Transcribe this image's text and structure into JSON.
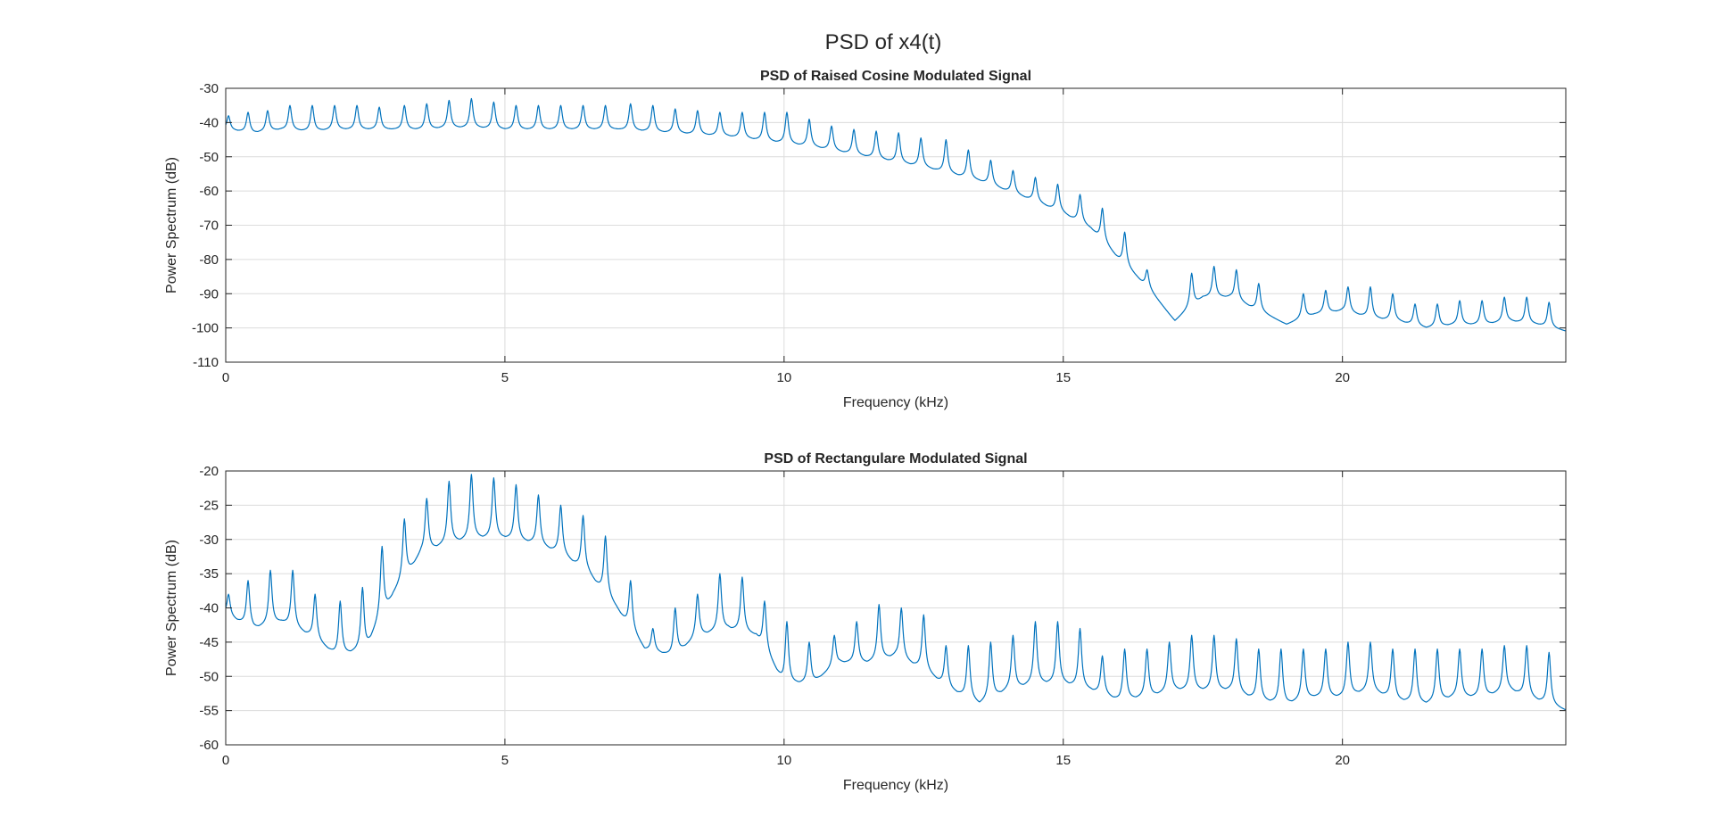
{
  "figure": {
    "title": "PSD of x4(t)"
  },
  "chart_data": [
    {
      "type": "line",
      "title": "PSD of Raised Cosine Modulated Signal",
      "xlabel": "Frequency (kHz)",
      "ylabel": "Power Spectrum (dB)",
      "xlim": [
        0,
        24
      ],
      "ylim": [
        -110,
        -30
      ],
      "xticks": [
        0,
        5,
        10,
        15,
        20
      ],
      "yticks": [
        -110,
        -100,
        -90,
        -80,
        -70,
        -60,
        -50,
        -40,
        -30
      ],
      "grid": true,
      "series": [
        {
          "color": "#0072BD",
          "x": [
            0,
            0.5,
            1,
            1.5,
            2,
            2.5,
            3,
            3.5,
            4,
            4.5,
            5,
            5.5,
            6,
            6.5,
            7,
            7.5,
            8,
            8.5,
            9,
            9.5,
            10,
            10.5,
            11,
            11.5,
            12,
            12.5,
            13,
            13.5,
            14,
            14.5,
            15,
            15.5,
            16,
            16.5,
            17,
            17.5,
            18,
            18.5,
            19,
            19.5,
            20,
            20.5,
            21,
            21.5,
            22,
            22.5,
            23,
            23.5,
            24
          ],
          "floor": [
            -42,
            -43,
            -42,
            -42.5,
            -42,
            -42,
            -42,
            -42,
            -41.5,
            -41.5,
            -42,
            -42,
            -42,
            -42,
            -42,
            -42.5,
            -43,
            -43.5,
            -44,
            -45,
            -46,
            -47,
            -48.5,
            -50,
            -51.5,
            -53,
            -55,
            -57,
            -60,
            -63,
            -66.5,
            -71,
            -80,
            -88,
            -98,
            -91,
            -91,
            -95,
            -99,
            -96,
            -95,
            -97,
            -98,
            -100,
            -99,
            -99,
            -98,
            -99,
            -101
          ],
          "peaks": {
            "x": [
              0.05,
              0.4,
              0.75,
              1.15,
              1.55,
              1.95,
              2.35,
              2.75,
              3.2,
              3.6,
              4.0,
              4.4,
              4.8,
              5.2,
              5.6,
              6.0,
              6.4,
              6.8,
              7.25,
              7.65,
              8.05,
              8.45,
              8.85,
              9.25,
              9.65,
              10.05,
              10.45,
              10.85,
              11.25,
              11.65,
              12.05,
              12.45,
              12.9,
              13.3,
              13.7,
              14.1,
              14.5,
              14.9,
              15.3,
              15.7,
              16.1,
              16.5,
              17.3,
              17.7,
              18.1,
              18.5,
              19.3,
              19.7,
              20.1,
              20.5,
              20.9,
              21.3,
              21.7,
              22.1,
              22.5,
              22.9,
              23.3,
              23.7
            ],
            "y": [
              -38,
              -37,
              -36.5,
              -35,
              -35,
              -35,
              -35,
              -35.5,
              -35,
              -34.5,
              -33.5,
              -33,
              -34,
              -35,
              -35,
              -35,
              -35,
              -35,
              -34.5,
              -35,
              -36,
              -36.5,
              -37,
              -37,
              -37,
              -37,
              -39,
              -41,
              -42,
              -42.5,
              -43,
              -44.5,
              -45,
              -48,
              -51,
              -54,
              -56,
              -58,
              -61,
              -65,
              -72,
              -83,
              -84,
              -82,
              -83,
              -87,
              -90,
              -89,
              -88,
              -88,
              -90,
              -93,
              -93,
              -92,
              -92,
              -91,
              -91,
              -92.5
            ]
          }
        }
      ]
    },
    {
      "type": "line",
      "title": "PSD of Rectangulare Modulated Signal",
      "xlabel": "Frequency (kHz)",
      "ylabel": "Power Spectrum (dB)",
      "xlim": [
        0,
        24
      ],
      "ylim": [
        -60,
        -20
      ],
      "xticks": [
        0,
        5,
        10,
        15,
        20
      ],
      "yticks": [
        -60,
        -55,
        -50,
        -45,
        -40,
        -35,
        -30,
        -25,
        -20
      ],
      "grid": true,
      "series": [
        {
          "color": "#0072BD",
          "x": [
            0,
            0.5,
            1,
            1.5,
            2,
            2.5,
            3,
            3.5,
            4,
            4.5,
            5,
            5.5,
            6,
            6.5,
            7,
            7.5,
            8,
            8.5,
            9,
            9.5,
            10,
            10.5,
            11,
            11.5,
            12,
            12.5,
            13,
            13.5,
            14,
            14.5,
            15,
            15.5,
            16,
            16.5,
            17,
            17.5,
            18,
            18.5,
            19,
            19.5,
            20,
            20.5,
            21,
            21.5,
            22,
            22.5,
            23,
            23.5,
            24
          ],
          "floor": [
            -41,
            -43,
            -42,
            -44,
            -47,
            -46,
            -38,
            -32,
            -30.5,
            -29.8,
            -29.8,
            -30.5,
            -32,
            -35,
            -40,
            -46,
            -47,
            -44,
            -43,
            -44,
            -51,
            -51,
            -48,
            -48,
            -47,
            -49,
            -52,
            -54,
            -52,
            -51,
            -51,
            -52,
            -53.5,
            -53,
            -52,
            -52,
            -52,
            -53.5,
            -54,
            -53,
            -53,
            -52,
            -53.5,
            -54,
            -53,
            -53,
            -52,
            -53.5,
            -55
          ],
          "peaks": {
            "x": [
              0.05,
              0.4,
              0.8,
              1.2,
              1.6,
              2.05,
              2.45,
              2.8,
              3.2,
              3.6,
              4.0,
              4.4,
              4.8,
              5.2,
              5.6,
              6.0,
              6.4,
              6.8,
              7.25,
              7.65,
              8.05,
              8.45,
              8.85,
              9.25,
              9.65,
              10.05,
              10.45,
              10.9,
              11.3,
              11.7,
              12.1,
              12.5,
              12.9,
              13.3,
              13.7,
              14.1,
              14.5,
              14.9,
              15.3,
              15.7,
              16.1,
              16.5,
              16.9,
              17.3,
              17.7,
              18.1,
              18.5,
              18.9,
              19.3,
              19.7,
              20.1,
              20.5,
              20.9,
              21.3,
              21.7,
              22.1,
              22.5,
              22.9,
              23.3,
              23.7
            ],
            "y": [
              -38,
              -36,
              -34.5,
              -34.5,
              -38,
              -39,
              -37,
              -31,
              -27,
              -24,
              -21.5,
              -20.5,
              -21,
              -22,
              -23.5,
              -25,
              -26.5,
              -29.5,
              -36,
              -43,
              -40,
              -38,
              -35,
              -35.5,
              -39,
              -42,
              -45,
              -44,
              -42,
              -39.5,
              -40,
              -41,
              -45.5,
              -45.5,
              -45,
              -44,
              -42,
              -42,
              -43,
              -47,
              -46,
              -46,
              -45,
              -44,
              -44,
              -44.5,
              -46,
              -46,
              -46,
              -46,
              -45,
              -45,
              -46,
              -46,
              -46,
              -46,
              -46,
              -45.5,
              -45.5,
              -46.5
            ]
          }
        }
      ]
    }
  ]
}
